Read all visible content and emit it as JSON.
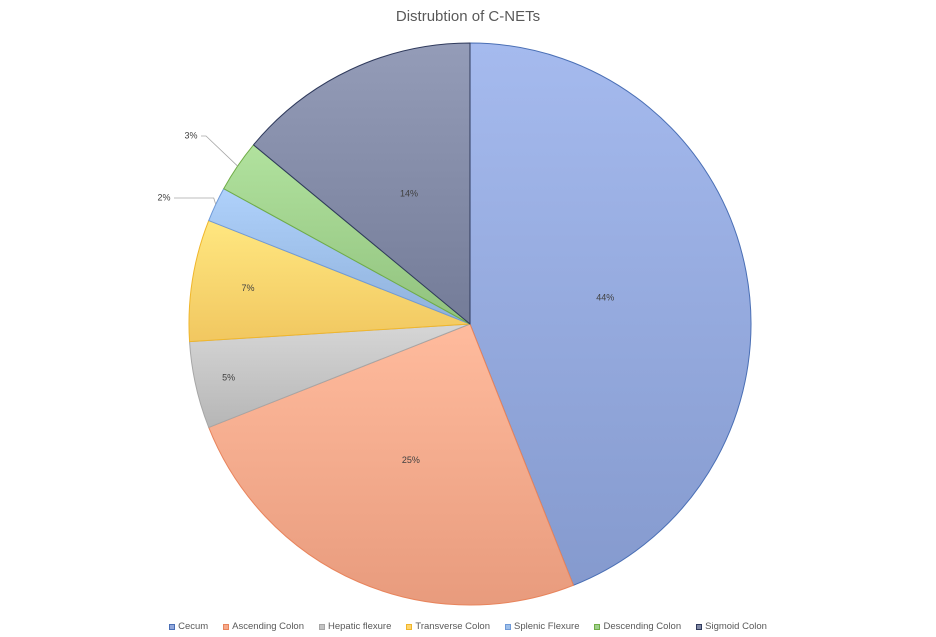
{
  "chart_data": {
    "type": "pie",
    "title": "Distrubtion of C-NETs",
    "categories": [
      "Cecum",
      "Ascending Colon",
      "Hepatic flexure",
      "Transverse Colon",
      "Splenic Flexure",
      "Descending Colon",
      "Sigmoid Colon"
    ],
    "values": [
      44,
      25,
      5,
      7,
      2,
      3,
      14
    ],
    "labels": [
      "44%",
      "25%",
      "5%",
      "7%",
      "2%",
      "3%",
      "14%"
    ],
    "colors": [
      "#93a8dc",
      "#f6a98b",
      "#c4c4c4",
      "#ffd56e",
      "#9dbfe9",
      "#9fd08c",
      "#828aa6"
    ],
    "edge_colors": [
      "#4a6fb5",
      "#e8845c",
      "#a6a6a6",
      "#f0b62b",
      "#6f9ad8",
      "#70ad47",
      "#2f3a5c"
    ],
    "legend_position": "bottom"
  }
}
